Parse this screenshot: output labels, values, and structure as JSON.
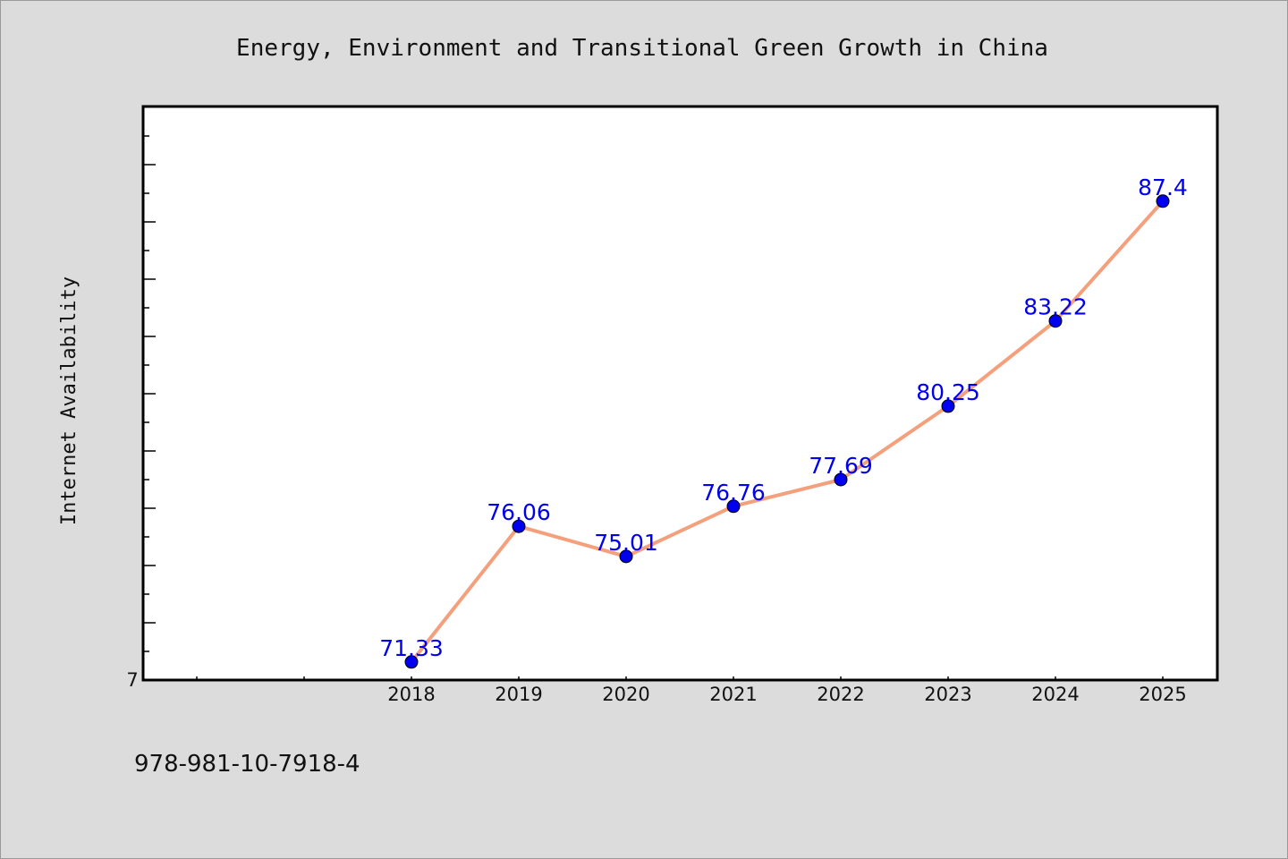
{
  "chart_data": {
    "type": "line",
    "title": "Energy, Environment and Transitional Green Growth in China",
    "xlabel": "",
    "ylabel": "Internet Availability",
    "categories": [
      "2018",
      "2019",
      "2020",
      "2021",
      "2022",
      "2023",
      "2024",
      "2025"
    ],
    "series": [
      {
        "values": [
          71.33,
          76.06,
          75.01,
          76.76,
          77.69,
          80.25,
          83.22,
          87.4
        ],
        "labels": [
          "71.33",
          "76.06",
          "75.01",
          "76.76",
          "77.69",
          "80.25",
          "83.22",
          "87.4"
        ],
        "line_color": "#f4a07c",
        "marker_color": "#0000ee"
      }
    ],
    "ylim": [
      70.7,
      90.7
    ],
    "y_tick_label": "7",
    "grid": false,
    "legend": "none"
  },
  "footer": {
    "isbn": "978-981-10-7918-4"
  }
}
